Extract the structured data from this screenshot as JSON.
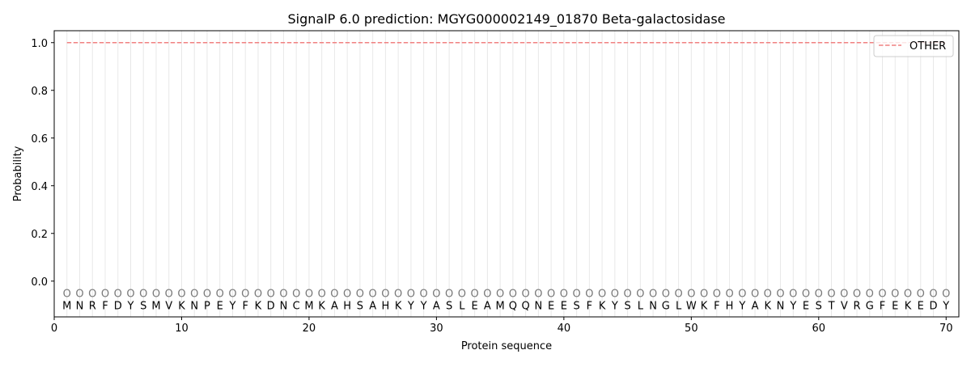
{
  "chart_data": {
    "type": "line",
    "title": "SignalP 6.0 prediction: MGYG000002149_01870 Beta-galactosidase",
    "xlabel": "Protein sequence",
    "ylabel": "Probability",
    "xlim": [
      0,
      71
    ],
    "ylim": [
      -0.15,
      1.05
    ],
    "xticks": [
      0,
      10,
      20,
      30,
      40,
      50,
      60,
      70
    ],
    "yticks": [
      0.0,
      0.2,
      0.4,
      0.6,
      0.8,
      1.0
    ],
    "ytick_labels": [
      "0.0",
      "0.2",
      "0.4",
      "0.6",
      "0.8",
      "1.0"
    ],
    "grid": "vertical lines at each residue",
    "legend_position": "top-right",
    "sequence": "MNRFDYSMVKNPEYFKDNCMKAHSAHKYYASLEAMQQNEESFKYSLNGLWKFHYAKNYESTVRGFEKEDY",
    "predicted_labels": "OOOOOOOOOOOOOOOOOOOOOOOOOOOOOOOOOOOOOOOOOOOOOOOOOOOOOOOOOOOOOOOOOOOOOO",
    "series": [
      {
        "name": "OTHER",
        "color": "#f08080",
        "style": "dashed",
        "x_start": 1,
        "x_end": 70,
        "value": 1.0
      }
    ]
  }
}
